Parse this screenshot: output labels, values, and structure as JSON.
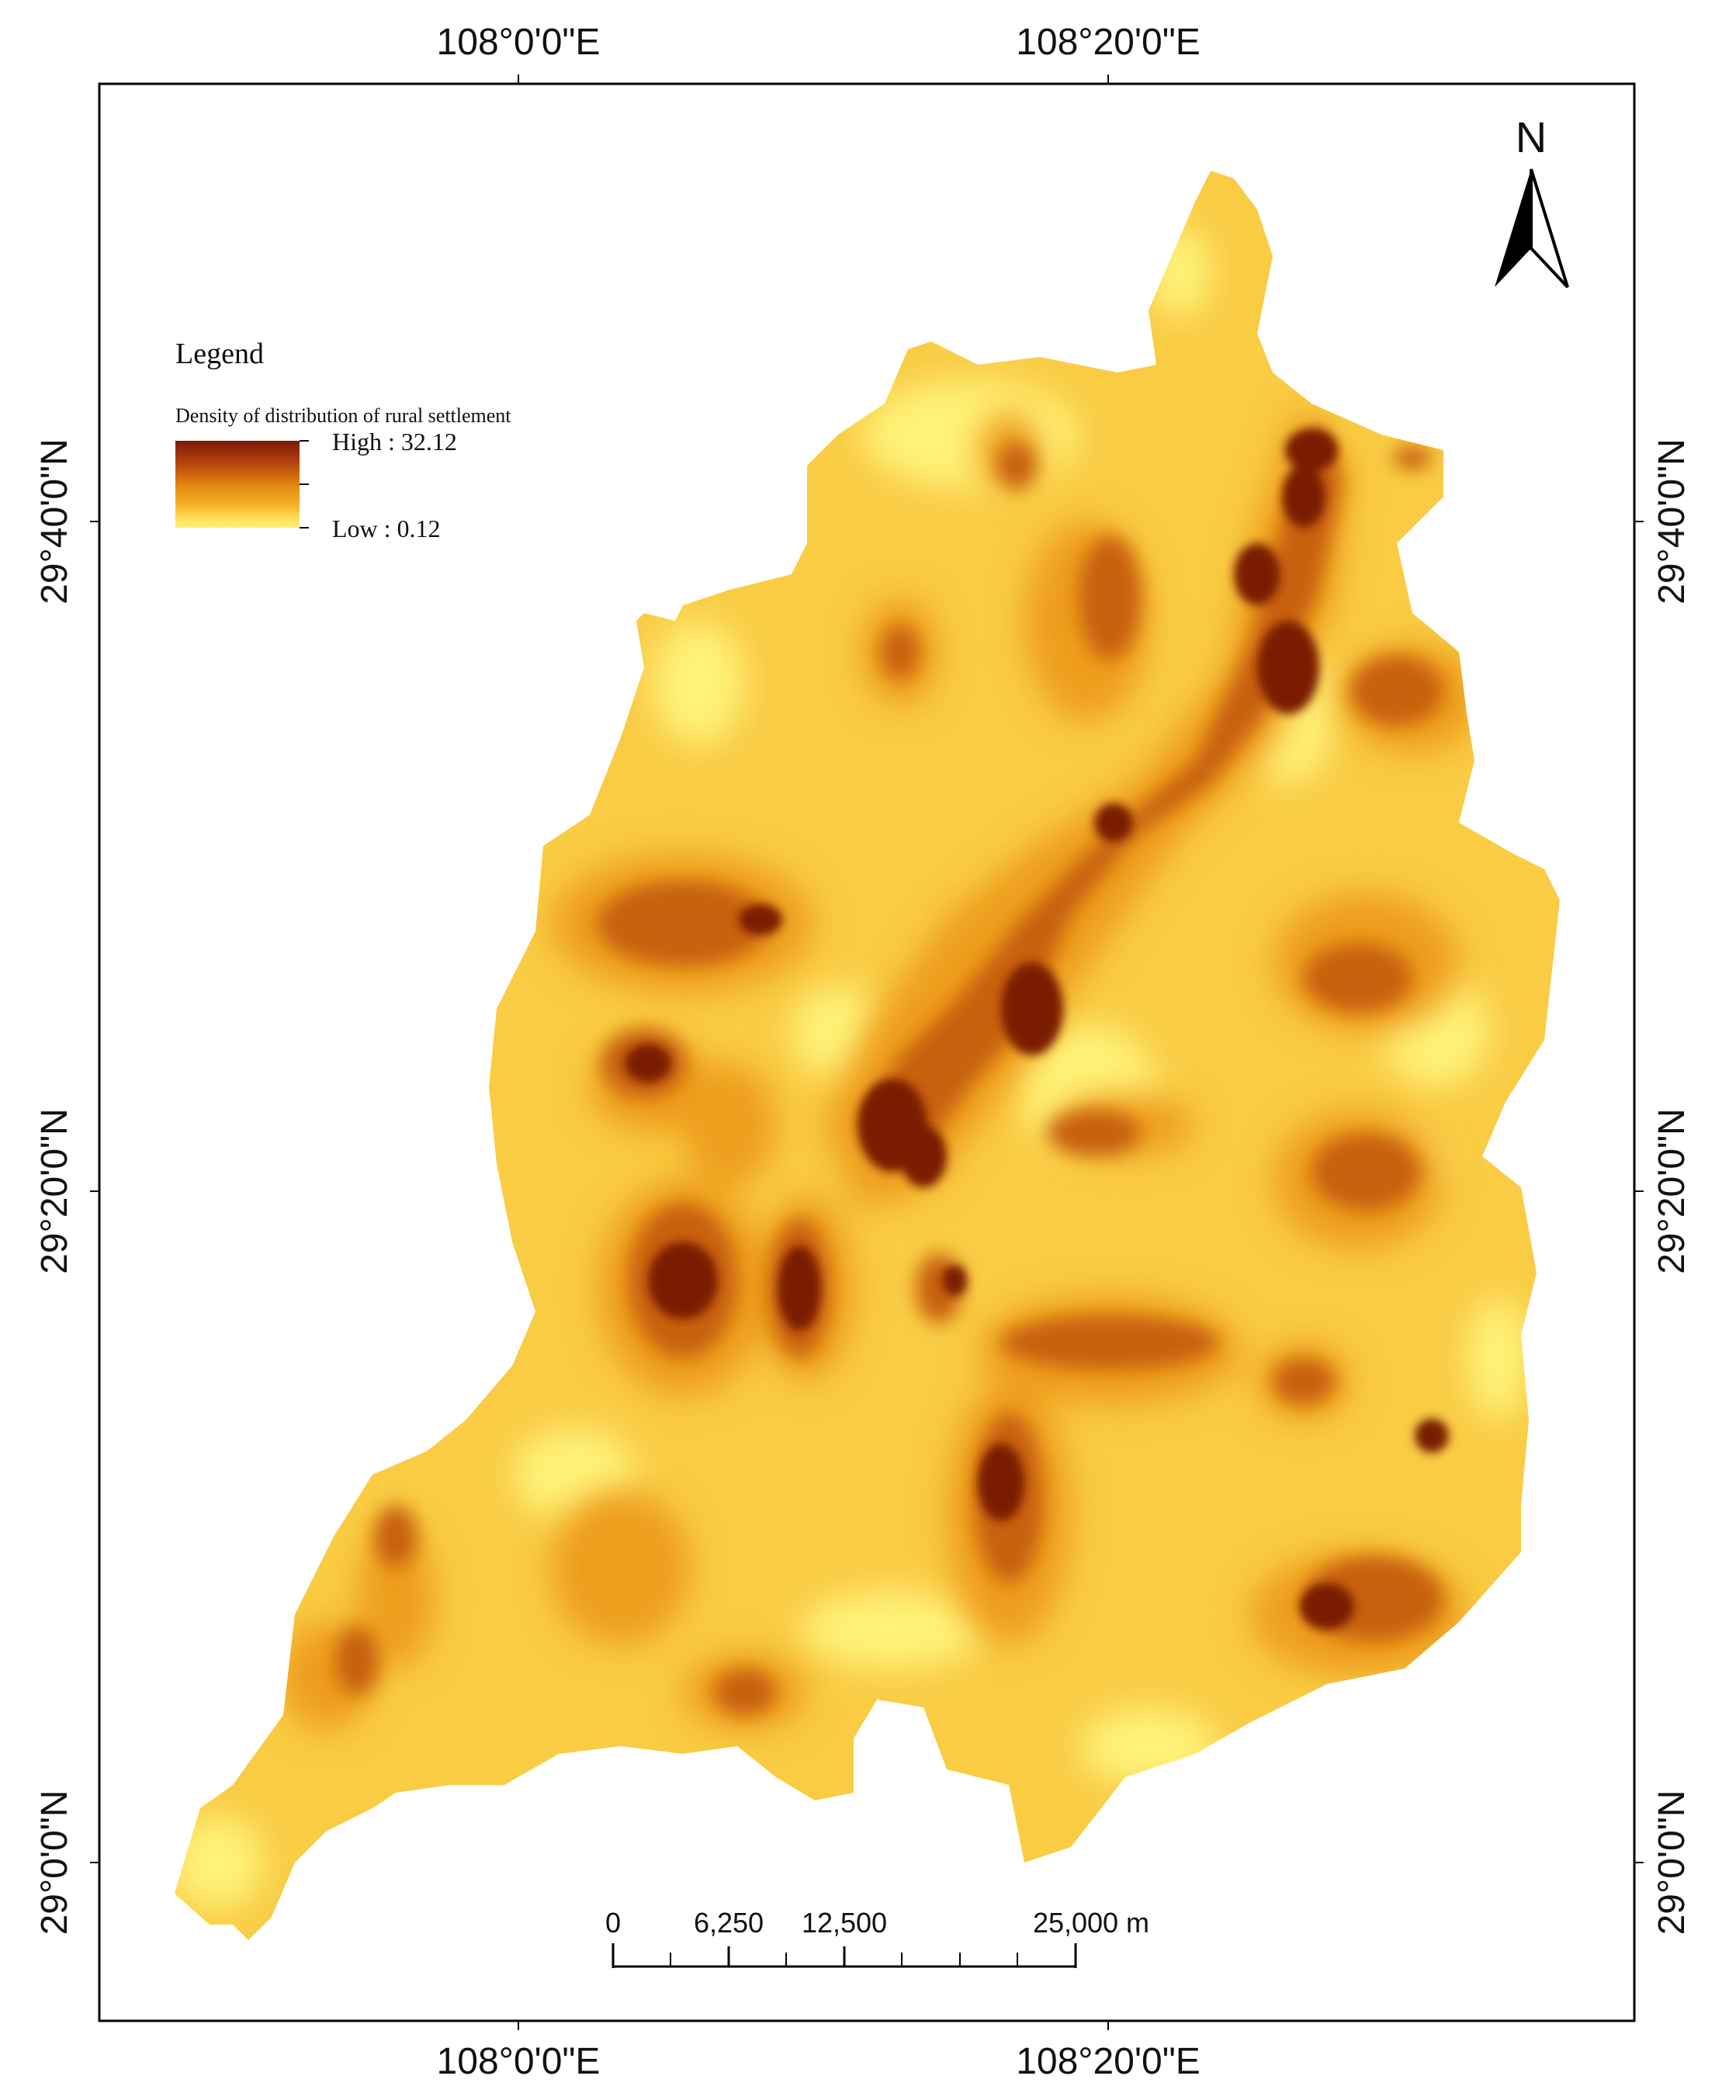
{
  "map": {
    "graticule": {
      "top_labels": [
        "108°0'0\"E",
        "108°20'0\"E"
      ],
      "bottom_labels": [
        "108°0'0\"E",
        "108°20'0\"E"
      ],
      "left_labels": [
        "29°40'0\"N",
        "29°20'0\"N",
        "29°0'0\"N"
      ],
      "right_labels": [
        "29°40'0\"N",
        "29°20'0\"N",
        "29°0'0\"N"
      ]
    },
    "north_arrow": {
      "label": "N",
      "icon": "north-arrow-icon"
    },
    "legend": {
      "title": "Legend",
      "layer_name": "Density of distribution of rural settlement",
      "high_label": "High : 32.12",
      "low_label": "Low : 0.12",
      "ramp_colors": [
        "#7a1a06",
        "#b5420c",
        "#e0850f",
        "#f6b52a",
        "#fde05a",
        "#fff27a"
      ]
    },
    "scale_bar": {
      "labels": [
        "0",
        "6,250",
        "12,500",
        "25,000 m"
      ],
      "values": [
        0,
        6250,
        12500,
        25000
      ],
      "unit": "m"
    },
    "colors": {
      "frame": "#000000",
      "level_1": "#fff27a",
      "level_2": "#fde05a",
      "level_3": "#f8c238",
      "level_4": "#f0a21f",
      "level_5": "#e0850f",
      "level_6": "#c8610a",
      "level_7": "#a83a08",
      "level_8": "#7a1a06"
    }
  }
}
